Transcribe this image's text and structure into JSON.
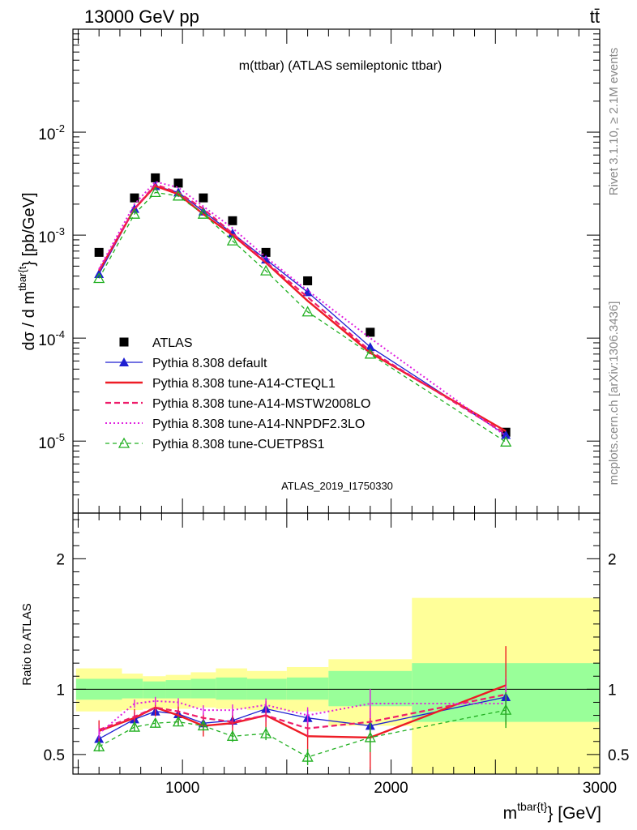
{
  "header": {
    "energy_label": "13000 GeV pp",
    "process_label": "tt̄"
  },
  "side_labels": {
    "rivet": "Rivet 3.1.10, ≥ 2.1M events",
    "mcplots": "mcplots.cern.ch [arXiv:1306.3436]"
  },
  "chart_data": [
    {
      "type": "line",
      "title": "m(ttbar) (ATLAS semileptonic ttbar)",
      "watermark": "ATLAS_2019_I1750330",
      "ylabel_main": "dσ / d m",
      "ylabel_sup": "tbar{t",
      "ylabel_unit": "} [pb/GeV]",
      "yscale": "log",
      "ylim": [
        2e-06,
        0.1
      ],
      "xlim": [
        475,
        3000
      ],
      "y_ticks": [
        {
          "value": 0.01,
          "base": "10",
          "exp": "-2"
        },
        {
          "value": 0.001,
          "base": "10",
          "exp": "-3"
        },
        {
          "value": 0.0001,
          "base": "10",
          "exp": "-4"
        },
        {
          "value": 1e-05,
          "base": "10",
          "exp": "-5"
        }
      ],
      "legend_position": "bottom-left",
      "x": [
        600,
        770,
        870,
        980,
        1100,
        1240,
        1400,
        1600,
        1900,
        2550
      ],
      "series": [
        {
          "name": "ATLAS",
          "color": "#000000",
          "style": "data",
          "marker": "square",
          "values": [
            0.00068,
            0.0023,
            0.0036,
            0.0032,
            0.0023,
            0.00138,
            0.00068,
            0.00036,
            0.000114,
            1.22e-05
          ]
        },
        {
          "name": "Pythia 8.308 default",
          "color": "#1f1fd1",
          "style": "solid",
          "marker": "triangle",
          "values": [
            0.00042,
            0.0018,
            0.003,
            0.0026,
            0.0017,
            0.00104,
            0.00058,
            0.00028,
            8.2e-05,
            1.15e-05
          ]
        },
        {
          "name": "Pythia 8.308 tune-A14-CTEQL1",
          "color": "#ee1c25",
          "style": "solid-thick",
          "marker": "none",
          "values": [
            0.00045,
            0.0018,
            0.003,
            0.0025,
            0.0016,
            0.001,
            0.00054,
            0.00023,
            7.2e-05,
            1.25e-05
          ]
        },
        {
          "name": "Pythia 8.308 tune-A14-MSTW2008LO",
          "color": "#ee1c6a",
          "style": "dashed",
          "marker": "none",
          "values": [
            0.00046,
            0.0018,
            0.0031,
            0.0026,
            0.0018,
            0.00104,
            0.00055,
            0.00025,
            7.5e-05,
            1.18e-05
          ]
        },
        {
          "name": "Pythia 8.308 tune-A14-NNPDF2.3LO",
          "color": "#e020e0",
          "style": "dotted",
          "marker": "none",
          "values": [
            0.00047,
            0.002,
            0.0033,
            0.0029,
            0.0019,
            0.00117,
            0.00061,
            0.00029,
            0.0001,
            1.12e-05
          ]
        },
        {
          "name": "Pythia 8.308 tune-CUETP8S1",
          "color": "#22b022",
          "style": "dashed-thin",
          "marker": "open-triangle",
          "values": [
            0.00038,
            0.0016,
            0.0026,
            0.0024,
            0.0016,
            0.00088,
            0.00045,
            0.00018,
            7e-05,
            9.8e-06
          ]
        }
      ]
    },
    {
      "type": "line",
      "ylabel": "Ratio to ATLAS",
      "xlabel_main": "m",
      "xlabel_sup": "tbar{t}",
      "xlabel_unit": "} [GeV]",
      "ylim": [
        0.35,
        2.35
      ],
      "xlim": [
        475,
        3000
      ],
      "y_ticks": [
        0.5,
        1,
        2
      ],
      "x_ticks": [
        1000,
        2000,
        3000
      ],
      "bands": [
        {
          "x0": 490,
          "x1": 710,
          "yellow": [
            0.83,
            1.16
          ],
          "green": [
            0.92,
            1.08
          ]
        },
        {
          "x0": 710,
          "x1": 810,
          "yellow": [
            0.84,
            1.12
          ],
          "green": [
            0.93,
            1.08
          ]
        },
        {
          "x0": 810,
          "x1": 920,
          "yellow": [
            0.85,
            1.1
          ],
          "green": [
            0.93,
            1.06
          ]
        },
        {
          "x0": 920,
          "x1": 1040,
          "yellow": [
            0.85,
            1.11
          ],
          "green": [
            0.93,
            1.07
          ]
        },
        {
          "x0": 1040,
          "x1": 1160,
          "yellow": [
            0.86,
            1.13
          ],
          "green": [
            0.93,
            1.08
          ]
        },
        {
          "x0": 1160,
          "x1": 1310,
          "yellow": [
            0.85,
            1.16
          ],
          "green": [
            0.92,
            1.09
          ]
        },
        {
          "x0": 1310,
          "x1": 1500,
          "yellow": [
            0.84,
            1.14
          ],
          "green": [
            0.92,
            1.08
          ]
        },
        {
          "x0": 1500,
          "x1": 1700,
          "yellow": [
            0.83,
            1.17
          ],
          "green": [
            0.92,
            1.09
          ]
        },
        {
          "x0": 1700,
          "x1": 2100,
          "yellow": [
            0.72,
            1.23
          ],
          "green": [
            0.87,
            1.14
          ]
        },
        {
          "x0": 2100,
          "x1": 3000,
          "yellow": [
            0.35,
            1.7
          ],
          "green": [
            0.75,
            1.2
          ]
        }
      ],
      "x": [
        600,
        770,
        870,
        980,
        1100,
        1240,
        1400,
        1600,
        1900,
        2550
      ],
      "series": [
        {
          "name": "Pythia 8.308 default",
          "color": "#1f1fd1",
          "style": "solid",
          "marker": "triangle",
          "values": [
            0.62,
            0.77,
            0.83,
            0.81,
            0.74,
            0.76,
            0.85,
            0.78,
            0.72,
            0.94
          ]
        },
        {
          "name": "Pythia 8.308 tune-A14-CTEQL1",
          "color": "#ee1c25",
          "style": "solid-thick",
          "marker": "none",
          "values": [
            0.68,
            0.78,
            0.86,
            0.8,
            0.72,
            0.74,
            0.8,
            0.64,
            0.63,
            1.03
          ]
        },
        {
          "name": "Pythia 8.308 tune-A14-MSTW2008LO",
          "color": "#ee1c6a",
          "style": "dashed",
          "marker": "none",
          "values": [
            0.69,
            0.79,
            0.86,
            0.83,
            0.78,
            0.75,
            0.8,
            0.7,
            0.75,
            0.96
          ]
        },
        {
          "name": "Pythia 8.308 tune-A14-NNPDF2.3LO",
          "color": "#e020e0",
          "style": "dotted",
          "marker": "none",
          "values": [
            0.66,
            0.89,
            0.91,
            0.9,
            0.84,
            0.84,
            0.88,
            0.8,
            0.89,
            0.89
          ]
        },
        {
          "name": "Pythia 8.308 tune-CUETP8S1",
          "color": "#22b022",
          "style": "dashed-thin",
          "marker": "open-triangle",
          "values": [
            0.56,
            0.71,
            0.74,
            0.75,
            0.72,
            0.64,
            0.66,
            0.48,
            0.63,
            0.84
          ]
        }
      ]
    }
  ]
}
